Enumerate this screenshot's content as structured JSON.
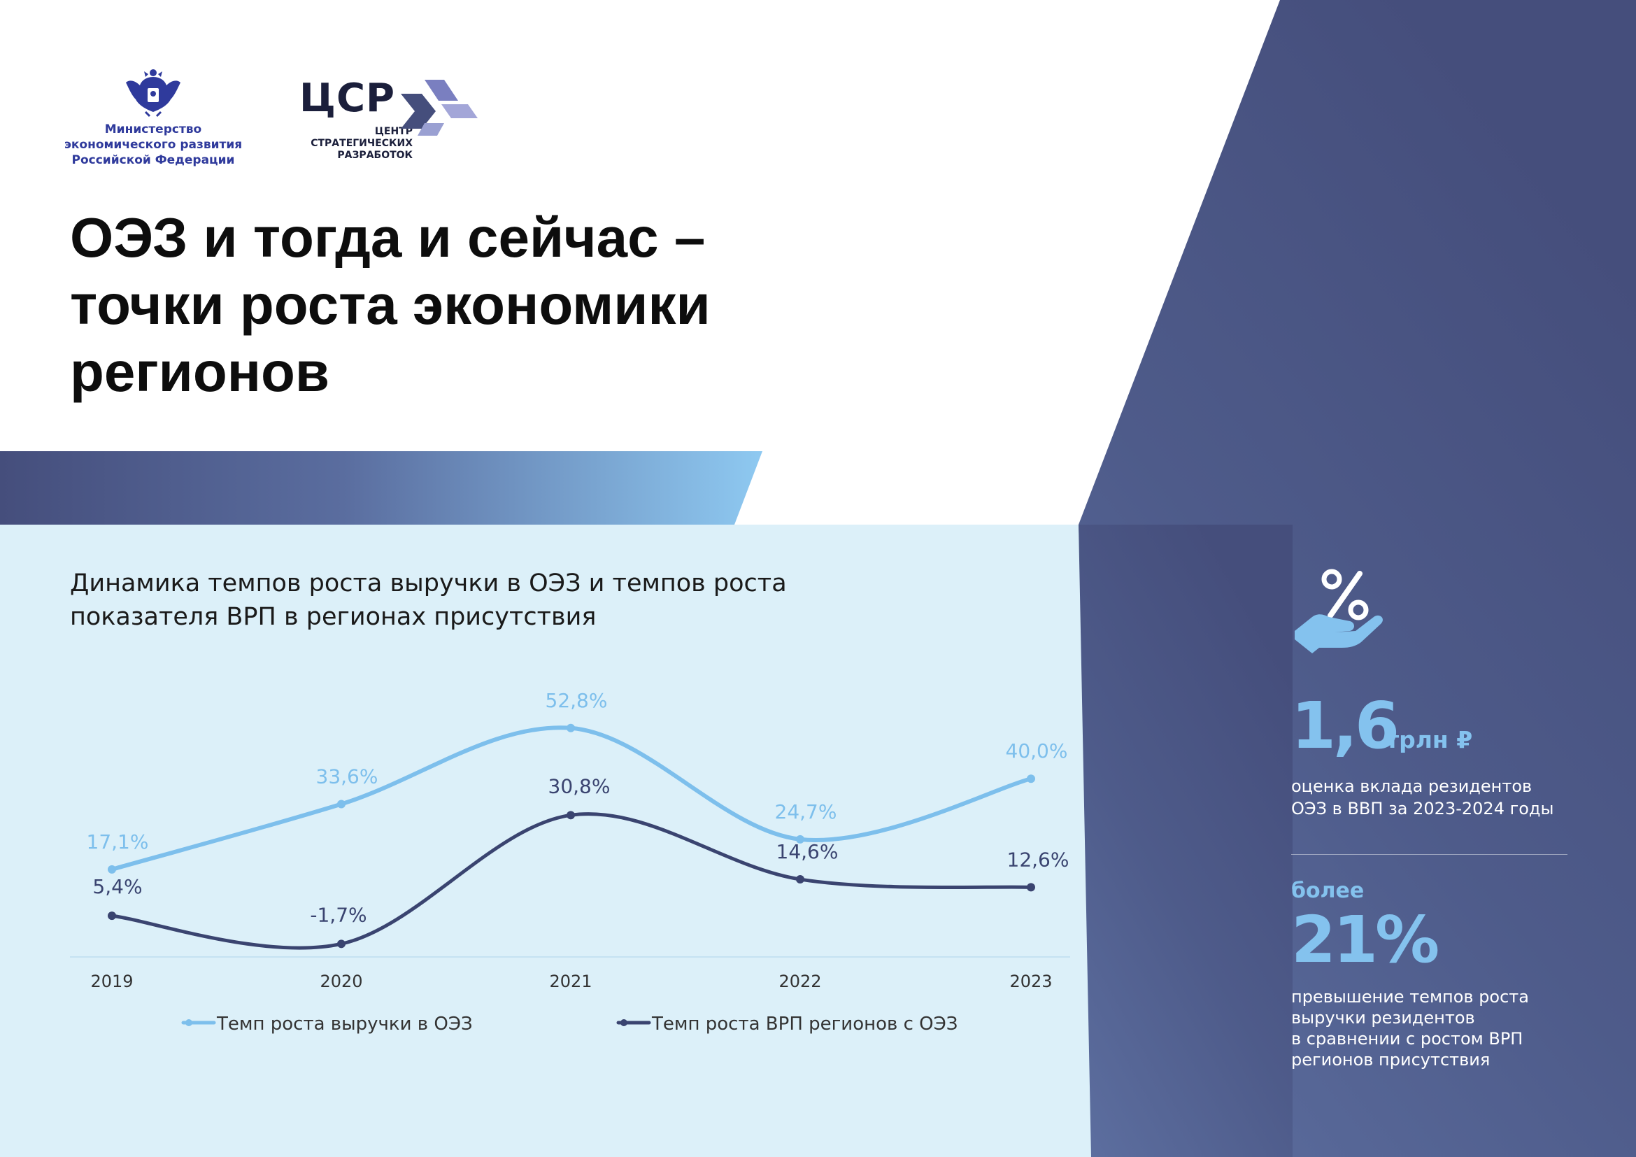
{
  "colors": {
    "navy": "#454e7c",
    "navy_mid": "#5a6a9a",
    "light_panel": "#dcf0f9",
    "accent_blue": "#84c2ee",
    "series_light": "#7dbfec",
    "series_dark": "#3a4470"
  },
  "logos": {
    "ministry": [
      "Министерство",
      "экономического развития",
      "Российской Федерации"
    ],
    "csr_big": "ЦСР",
    "csr_sub": "ЦЕНТР\nСТРАТЕГИЧЕСКИХ\nРАЗРАБОТОК"
  },
  "title": "ОЭЗ и тогда и сейчас –\nточки роста экономики\nрегионов",
  "chart_title": "Динамика темпов роста выручки в ОЭЗ и темпов роста\nпоказателя ВРП в регионах присутствия",
  "chart_data": {
    "type": "line",
    "categories": [
      "2019",
      "2020",
      "2021",
      "2022",
      "2023"
    ],
    "series": [
      {
        "name": "Темп роста выручки в ОЭЗ",
        "values": [
          17.1,
          33.6,
          52.8,
          24.7,
          40.0
        ],
        "labels": [
          "17,1%",
          "33,6%",
          "52,8%",
          "24,7%",
          "40,0%"
        ],
        "color": "#7dbfec"
      },
      {
        "name": "Темп роста ВРП регионов с ОЭЗ",
        "values": [
          5.4,
          -1.7,
          30.8,
          14.6,
          12.6
        ],
        "labels": [
          "5,4%",
          "-1,7%",
          "30,8%",
          "14,6%",
          "12,6%"
        ],
        "color": "#3a4470"
      }
    ],
    "ylim": [
      -5,
      60
    ],
    "legend": "bottom",
    "grid": false
  },
  "stats": {
    "icon": "percent-hand-icon",
    "first_value": "1,6",
    "first_unit": "трлн ₽",
    "first_desc": "оценка вклада резидентов\nОЭЗ в ВВП за 2023-2024 годы",
    "second_prefix": "более",
    "second_value": "21%",
    "second_desc": "превышение темпов роста\nвыручки резидентов\nв сравнении с ростом ВРП\nрегионов присутствия"
  }
}
